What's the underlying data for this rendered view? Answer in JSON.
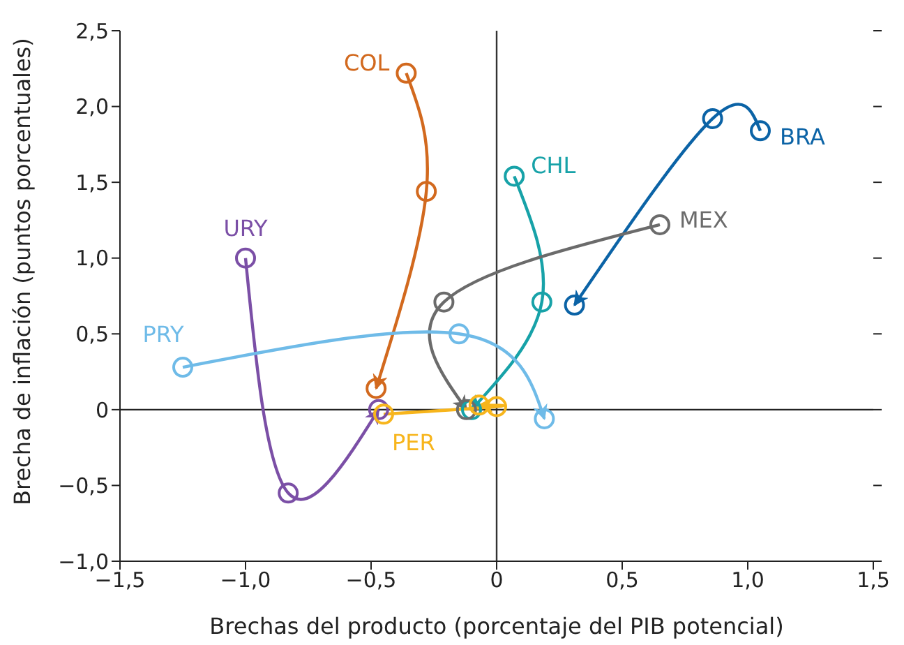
{
  "chart_data": {
    "type": "line",
    "xlabel": "Brechas del producto (porcentaje del PIB potencial)",
    "ylabel": "Brecha de inflación (puntos porcentuales)",
    "series": [
      {
        "name": "COL",
        "color": "#d2691e",
        "x": [
          -0.36,
          -0.28,
          -0.48
        ],
        "values": [
          2.22,
          1.44,
          0.14
        ]
      },
      {
        "name": "CHL",
        "color": "#17a2a8",
        "x": [
          0.07,
          0.18,
          -0.1
        ],
        "values": [
          1.54,
          0.71,
          0.0
        ]
      },
      {
        "name": "BRA",
        "color": "#0b63a6",
        "x": [
          1.05,
          0.86,
          0.31
        ],
        "values": [
          1.84,
          1.92,
          0.69
        ]
      },
      {
        "name": "MEX",
        "color": "#6b6b6b",
        "x": [
          0.65,
          -0.21,
          -0.12
        ],
        "values": [
          1.22,
          0.71,
          0.0
        ]
      },
      {
        "name": "URY",
        "color": "#7b4fa6",
        "x": [
          -1.0,
          -0.83,
          -0.47
        ],
        "values": [
          1.0,
          -0.55,
          0.0
        ]
      },
      {
        "name": "PRY",
        "color": "#6fbbe8",
        "x": [
          -1.25,
          -0.15,
          0.19
        ],
        "values": [
          0.28,
          0.5,
          -0.06
        ]
      },
      {
        "name": "PER",
        "color": "#f7b51c",
        "x": [
          -0.45,
          0.0,
          -0.07
        ],
        "values": [
          -0.03,
          0.02,
          0.03
        ]
      }
    ],
    "xlim": [
      -1.5,
      1.5
    ],
    "ylim": [
      -1.0,
      2.5
    ],
    "xticks": [
      {
        "value": -1.5,
        "label": "−1,5"
      },
      {
        "value": -1.0,
        "label": "−1,0"
      },
      {
        "value": -0.5,
        "label": "−0,5"
      },
      0,
      {
        "value": 0.5,
        "label": "0,5"
      },
      {
        "value": 1.0,
        "label": "1,0"
      },
      {
        "value": 1.5,
        "label": "1,5"
      }
    ],
    "yticks": [
      {
        "value": -1.0,
        "label": "−1,0"
      },
      {
        "value": -0.5,
        "label": "−0,5"
      },
      0,
      {
        "value": 0.5,
        "label": "0,5"
      },
      {
        "value": 1.0,
        "label": "1,0"
      },
      {
        "value": 1.5,
        "label": "1,5"
      },
      {
        "value": 2.0,
        "label": "2,0"
      },
      {
        "value": 2.5,
        "label": "2,5"
      }
    ],
    "ref_lines": [
      {
        "axis": "x",
        "value": 0,
        "color": "#333333"
      },
      {
        "axis": "y",
        "value": 0,
        "color": "#222222"
      }
    ],
    "marker": "circle",
    "line_style": "solid",
    "grid": false,
    "legend": false
  }
}
